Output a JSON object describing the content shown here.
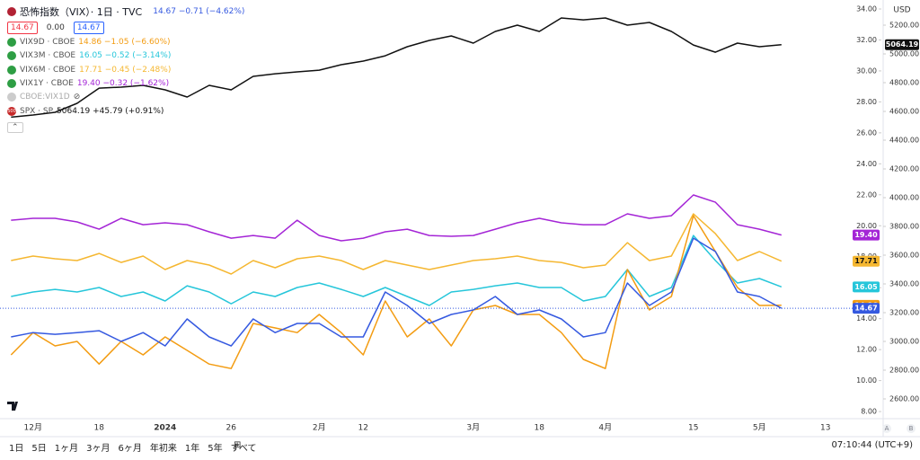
{
  "chart_data": {
    "type": "line",
    "categories": [
      null,
      "12月",
      null,
      null,
      "18",
      null,
      null,
      "2024",
      null,
      null,
      "26",
      null,
      null,
      null,
      "2月",
      null,
      "12",
      null,
      null,
      null,
      null,
      "3月",
      null,
      null,
      "18",
      null,
      null,
      "4月",
      null,
      null,
      null,
      "15",
      null,
      null,
      "5月",
      null,
      null,
      "13",
      null,
      null
    ],
    "ylim": [
      7.54,
      34.58
    ],
    "yticks": [
      {
        "value": 8,
        "label": "8.00"
      },
      {
        "value": 10,
        "label": "10.00"
      },
      {
        "value": 12,
        "label": "12.00"
      },
      {
        "value": 14,
        "label": "14.00"
      },
      {
        "value": 16,
        "label": "16.00"
      },
      {
        "value": 18,
        "label": "18.00"
      },
      {
        "value": 20,
        "label": "20.00"
      },
      {
        "value": 22,
        "label": "22.00"
      },
      {
        "value": 24,
        "label": "24.00"
      },
      {
        "value": 26,
        "label": "26.00"
      },
      {
        "value": 28,
        "label": "28.00"
      },
      {
        "value": 30,
        "label": "30.00"
      },
      {
        "value": 32,
        "label": "32.00"
      },
      {
        "value": 34,
        "label": "34.00"
      }
    ],
    "y2lim": [
      2462.5,
      5375
    ],
    "y2ticks": [
      {
        "value": 2600,
        "label": "2600.00"
      },
      {
        "value": 2800,
        "label": "2800.00"
      },
      {
        "value": 3000,
        "label": "3000.00"
      },
      {
        "value": 3200,
        "label": "3200.00"
      },
      {
        "value": 3400,
        "label": "3400.00"
      },
      {
        "value": 3600,
        "label": "3600.00"
      },
      {
        "value": 3800,
        "label": "3800.00"
      },
      {
        "value": 4000,
        "label": "4000.00"
      },
      {
        "value": 4200,
        "label": "4200.00"
      },
      {
        "value": 4400,
        "label": "4400.00"
      },
      {
        "value": 4600,
        "label": "4600.00"
      },
      {
        "value": 4800,
        "label": "4800.00"
      },
      {
        "value": 5000,
        "label": "5000.00"
      },
      {
        "value": 5200,
        "label": "5200.00"
      }
    ],
    "y2_unit": "USD",
    "grid": false,
    "hidden_series": "CBOE:VIX1D",
    "series": [
      {
        "name": "恐怖指数（VIX）· 1日 · TVC",
        "legend_value": "14.67 −0.71 (−4.62%)",
        "last_label": "14.67",
        "color": "#3559e0",
        "values": [
          12.82,
          13.1,
          12.99,
          13.1,
          13.22,
          12.53,
          13.1,
          12.24,
          13.98,
          12.82,
          12.24,
          13.98,
          13.1,
          13.69,
          13.69,
          12.82,
          12.82,
          15.72,
          14.85,
          13.69,
          14.27,
          14.56,
          15.43,
          14.27,
          14.56,
          13.98,
          12.82,
          13.1,
          16.3,
          14.85,
          15.72,
          19.2,
          18.33,
          15.72,
          15.43,
          14.67,
          null,
          null,
          null,
          null
        ]
      },
      {
        "name": "VIX9D · CBOE",
        "legend_value": "14.86 −1.05 (−6.60%)",
        "last_label": "14.86",
        "color": "#f39c12",
        "values": [
          11.66,
          13.1,
          12.24,
          12.53,
          11.07,
          12.53,
          11.66,
          12.82,
          11.95,
          11.07,
          10.78,
          13.69,
          13.4,
          13.1,
          14.27,
          13.1,
          11.66,
          15.14,
          12.82,
          13.98,
          12.24,
          14.56,
          14.85,
          14.27,
          14.27,
          13.1,
          11.37,
          10.78,
          17.17,
          14.56,
          15.43,
          20.65,
          18.33,
          16.01,
          14.85,
          14.86,
          null,
          null,
          null,
          null
        ]
      },
      {
        "name": "VIX3M · CBOE",
        "legend_value": "16.05 −0.52 (−3.14%)",
        "last_label": "16.05",
        "color": "#26c6da",
        "values": [
          15.43,
          15.72,
          15.89,
          15.72,
          16.01,
          15.43,
          15.72,
          15.14,
          16.12,
          15.72,
          14.96,
          15.72,
          15.43,
          16.01,
          16.3,
          15.89,
          15.43,
          16.01,
          15.43,
          14.85,
          15.72,
          15.89,
          16.12,
          16.3,
          16.01,
          16.01,
          15.14,
          15.43,
          17.17,
          15.43,
          16.01,
          19.37,
          17.75,
          16.3,
          16.59,
          16.05,
          null,
          null,
          null,
          null
        ]
      },
      {
        "name": "VIX6M · CBOE",
        "legend_value": "17.71 −0.45 (−2.48%)",
        "last_label": "17.71",
        "color": "#f5b731",
        "values": [
          17.75,
          18.04,
          17.87,
          17.75,
          18.21,
          17.63,
          18.04,
          17.17,
          17.75,
          17.46,
          16.88,
          17.75,
          17.29,
          17.87,
          18.04,
          17.75,
          17.17,
          17.75,
          17.46,
          17.17,
          17.46,
          17.75,
          17.87,
          18.04,
          17.75,
          17.63,
          17.29,
          17.46,
          18.91,
          17.75,
          18.04,
          20.77,
          19.49,
          17.75,
          18.33,
          17.71,
          null,
          null,
          null,
          null
        ]
      },
      {
        "name": "VIX1Y · CBOE",
        "legend_value": "19.40 −0.32 (−1.62%)",
        "last_label": "19.40",
        "color": "#a425d6",
        "values": [
          20.36,
          20.48,
          20.48,
          20.25,
          19.78,
          20.48,
          20.07,
          20.19,
          20.07,
          19.61,
          19.2,
          19.37,
          19.2,
          20.36,
          19.37,
          19.03,
          19.2,
          19.61,
          19.78,
          19.37,
          19.32,
          19.37,
          19.78,
          20.19,
          20.48,
          20.19,
          20.07,
          20.07,
          20.77,
          20.48,
          20.65,
          21.99,
          21.52,
          20.07,
          19.78,
          19.4,
          null,
          null,
          null,
          null
        ]
      },
      {
        "name": "SPX · SP",
        "legend_value": "5064.19 +45.79 (+0.91%)",
        "last_label": "5064.19",
        "color": "#111111",
        "axis": "y2",
        "values": [
          4560,
          4575,
          4594,
          4656,
          4762,
          4769,
          4781,
          4750,
          4700,
          4781,
          4750,
          4844,
          4862,
          4875,
          4887,
          4925,
          4950,
          4987,
          5050,
          5094,
          5125,
          5075,
          5156,
          5200,
          5156,
          5250,
          5237,
          5250,
          5200,
          5219,
          5156,
          5062,
          5012,
          5075,
          5050,
          5064.19,
          null,
          null,
          null,
          null
        ]
      }
    ]
  },
  "ui": {
    "toolbar": [
      "14.67",
      "0.00",
      "14.67"
    ],
    "spx_icon": "500",
    "ranges": [
      "1日",
      "5日",
      "1ヶ月",
      "3ヶ月",
      "6ヶ月",
      "年初来",
      "1年",
      "5年",
      "すべて"
    ],
    "clock": "07:10:44 (UTC+9)",
    "markers": [
      "A",
      "B"
    ]
  }
}
